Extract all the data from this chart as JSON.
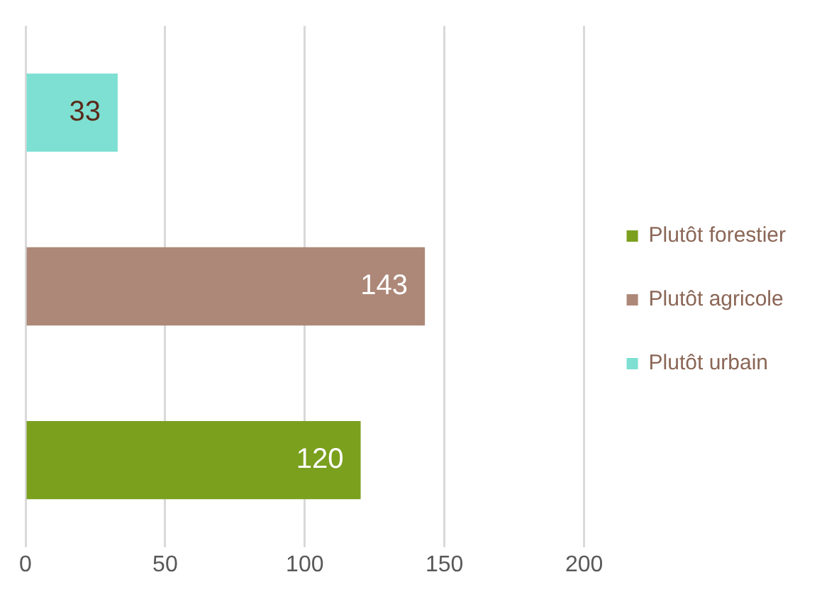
{
  "chart_data": {
    "type": "bar",
    "orientation": "horizontal",
    "categories": [
      null
    ],
    "series": [
      {
        "name": "Plutôt forestier",
        "color": "#7aa01e",
        "values": [
          120
        ]
      },
      {
        "name": "Plutôt agricole",
        "color": "#ad8878",
        "values": [
          143
        ]
      },
      {
        "name": "Plutôt urbain",
        "color": "#7de0d2",
        "values": [
          33
        ]
      }
    ],
    "xlim": [
      0,
      200
    ],
    "xticks": [
      0,
      50,
      100,
      150,
      200
    ],
    "grid": "x",
    "legend": "right",
    "data_labels": true
  }
}
